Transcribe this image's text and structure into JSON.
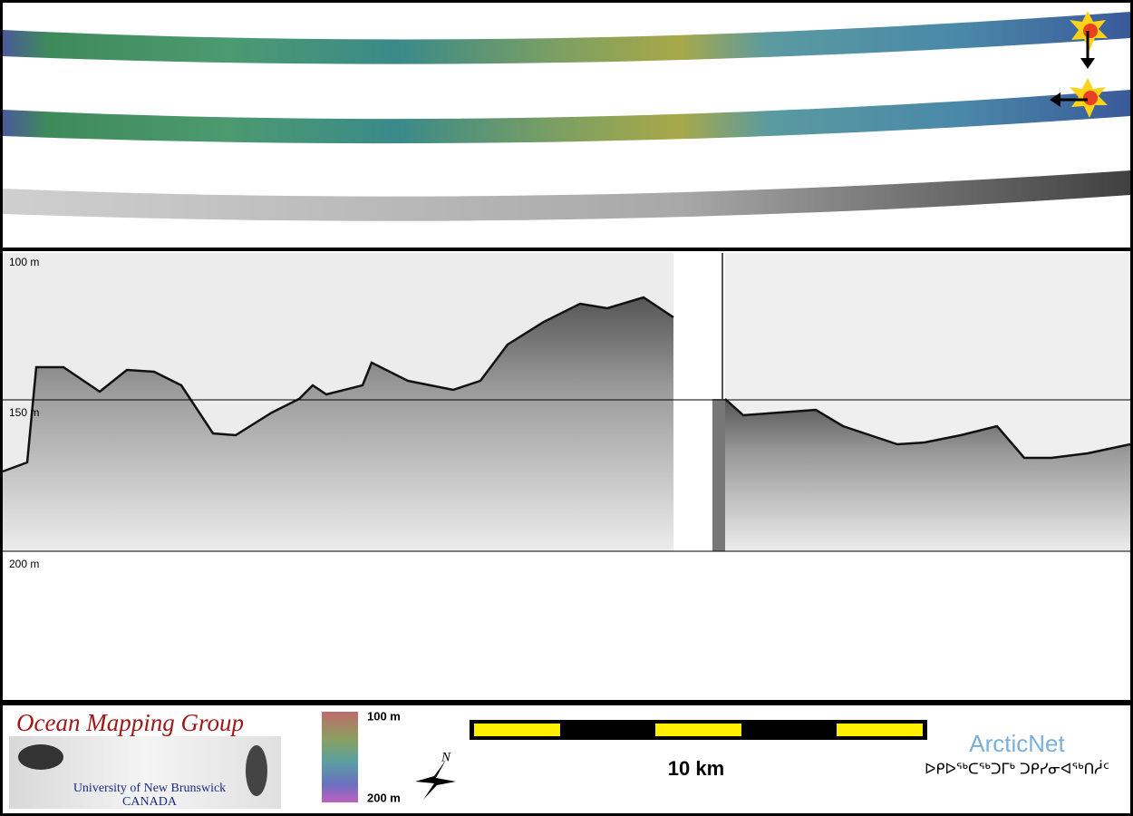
{
  "echogram": {
    "depth_labels": [
      "100 m",
      "150 m",
      "200 m"
    ]
  },
  "footer": {
    "logo": {
      "title": "Ocean Mapping Group",
      "university": "University of New Brunswick",
      "country": "CANADA"
    },
    "depth_scale": {
      "top": "100 m",
      "bottom": "200 m"
    },
    "compass": "N",
    "scale_bar": "10 km",
    "partner": {
      "name": "ArcticNet",
      "syllabics": "ᐅᑭᐅᖅᑕᖅᑐᒥᒃ ᑐᑭᓯᓂᐊᖅᑎᓲᑦ"
    }
  }
}
